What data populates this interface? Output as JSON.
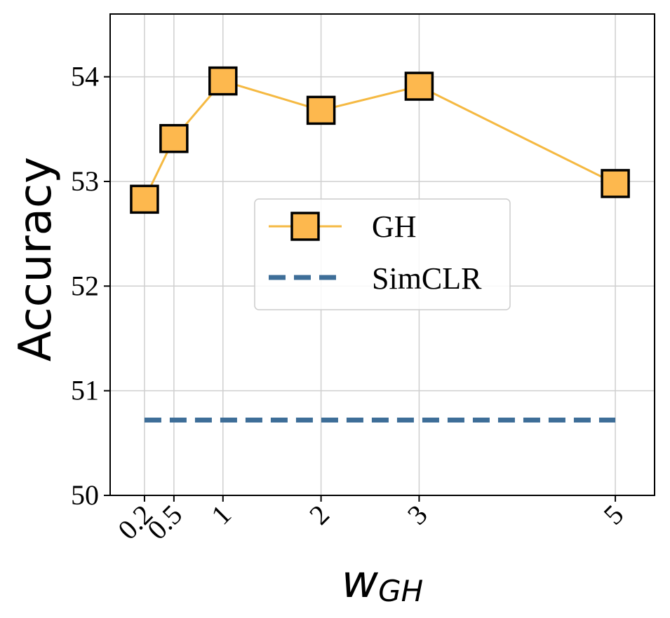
{
  "chart_data": {
    "type": "line",
    "title": "",
    "xlabel_main": "w",
    "xlabel_sub": "GH",
    "ylabel": "Accuracy",
    "xlim": [
      -0.15,
      5.4
    ],
    "ylim": [
      50,
      54.6
    ],
    "x_ticks": [
      {
        "value": 0.2,
        "label": "0.2"
      },
      {
        "value": 0.5,
        "label": "0.5"
      },
      {
        "value": 1,
        "label": "1"
      },
      {
        "value": 2,
        "label": "2"
      },
      {
        "value": 3,
        "label": "3"
      },
      {
        "value": 5,
        "label": "5"
      }
    ],
    "y_ticks": [
      {
        "value": 50,
        "label": "50"
      },
      {
        "value": 51,
        "label": "51"
      },
      {
        "value": 52,
        "label": "52"
      },
      {
        "value": 53,
        "label": "53"
      },
      {
        "value": 54,
        "label": "54"
      }
    ],
    "grid": true,
    "legend_position": "center",
    "series": [
      {
        "name": "GH",
        "style": "solid-square-markers",
        "color": "#F5B942",
        "marker_fill": "#FDB84E",
        "x": [
          0.2,
          0.5,
          1,
          2,
          3,
          5
        ],
        "values": [
          52.83,
          53.41,
          53.96,
          53.68,
          53.91,
          52.98
        ]
      },
      {
        "name": "SimCLR",
        "style": "dashed",
        "color": "#3E6E98",
        "x": [
          0.2,
          5
        ],
        "values": [
          50.72,
          50.72
        ]
      }
    ]
  }
}
